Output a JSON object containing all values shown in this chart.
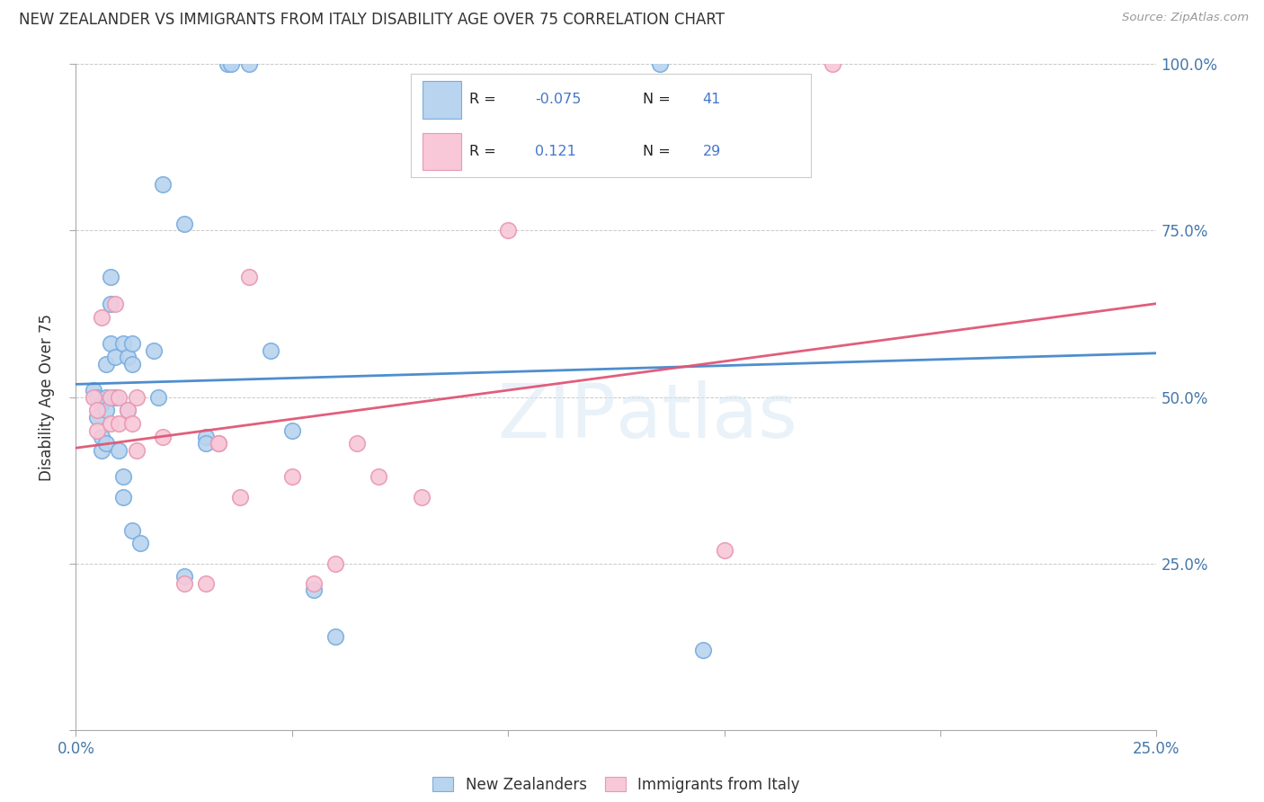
{
  "title": "NEW ZEALANDER VS IMMIGRANTS FROM ITALY DISABILITY AGE OVER 75 CORRELATION CHART",
  "source": "Source: ZipAtlas.com",
  "ylabel": "Disability Age Over 75",
  "xmin": 0.0,
  "xmax": 0.25,
  "ymin": 0.0,
  "ymax": 1.0,
  "nz_color": "#b8d4ee",
  "nz_edge": "#7aade0",
  "it_color": "#f8c8d8",
  "it_edge": "#e899b4",
  "nz_line_color": "#4488cc",
  "it_line_color": "#e05575",
  "legend_text_color": "#222222",
  "legend_value_color": "#4477cc",
  "axis_label_color": "#4477aa",
  "nz_points_x": [
    0.004,
    0.005,
    0.005,
    0.006,
    0.006,
    0.006,
    0.007,
    0.007,
    0.007,
    0.007,
    0.008,
    0.008,
    0.008,
    0.009,
    0.009,
    0.01,
    0.011,
    0.011,
    0.011,
    0.012,
    0.012,
    0.013,
    0.013,
    0.013,
    0.015,
    0.018,
    0.019,
    0.02,
    0.025,
    0.025,
    0.03,
    0.03,
    0.035,
    0.036,
    0.04,
    0.045,
    0.05,
    0.055,
    0.06,
    0.135,
    0.145
  ],
  "nz_points_y": [
    0.51,
    0.5,
    0.47,
    0.49,
    0.44,
    0.42,
    0.55,
    0.5,
    0.48,
    0.43,
    0.68,
    0.64,
    0.58,
    0.56,
    0.5,
    0.42,
    0.58,
    0.38,
    0.35,
    0.56,
    0.48,
    0.58,
    0.55,
    0.3,
    0.28,
    0.57,
    0.5,
    0.82,
    0.76,
    0.23,
    0.44,
    0.43,
    1.0,
    1.0,
    1.0,
    0.57,
    0.45,
    0.21,
    0.14,
    1.0,
    0.12
  ],
  "it_points_x": [
    0.004,
    0.005,
    0.005,
    0.006,
    0.008,
    0.008,
    0.009,
    0.01,
    0.01,
    0.012,
    0.013,
    0.014,
    0.014,
    0.02,
    0.025,
    0.03,
    0.033,
    0.033,
    0.038,
    0.04,
    0.05,
    0.055,
    0.06,
    0.065,
    0.07,
    0.08,
    0.1,
    0.15,
    0.175
  ],
  "it_points_y": [
    0.5,
    0.48,
    0.45,
    0.62,
    0.5,
    0.46,
    0.64,
    0.5,
    0.46,
    0.48,
    0.46,
    0.42,
    0.5,
    0.44,
    0.22,
    0.22,
    0.43,
    0.43,
    0.35,
    0.68,
    0.38,
    0.22,
    0.25,
    0.43,
    0.38,
    0.35,
    0.75,
    0.27,
    1.0
  ]
}
